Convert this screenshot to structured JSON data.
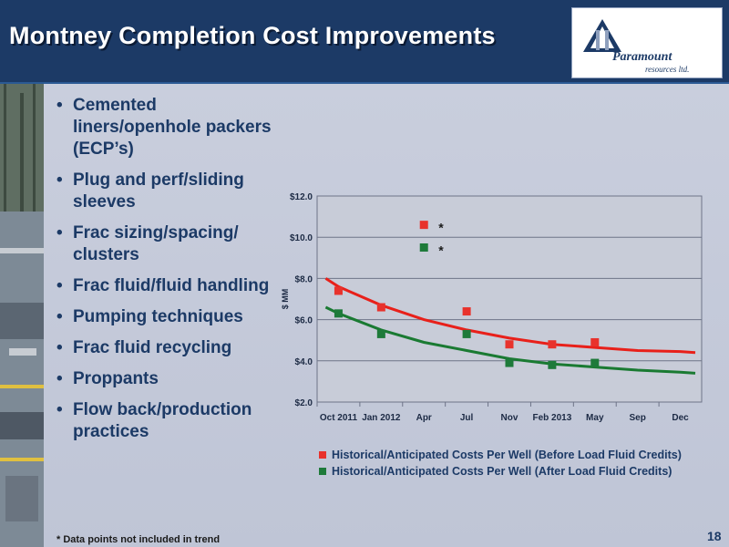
{
  "header": {
    "title": "Montney Completion Cost Improvements"
  },
  "logo": {
    "name": "Paramount",
    "sub": "resources ltd."
  },
  "bullets": [
    "Cemented liners/openhole packers (ECP’s)",
    "Plug and perf/sliding sleeves",
    "Frac sizing/spacing/ clusters",
    "Frac fluid/fluid handling",
    "Pumping techniques",
    "Frac fluid recycling",
    "Proppants",
    "Flow back/production practices"
  ],
  "chart_data": {
    "type": "scatter",
    "ylabel": "$ MM",
    "ylim": [
      2.0,
      12.0
    ],
    "yticks": [
      2.0,
      4.0,
      6.0,
      8.0,
      10.0,
      12.0
    ],
    "ytick_labels": [
      "$2.0",
      "$4.0",
      "$6.0",
      "$8.0",
      "$10.0",
      "$12.0"
    ],
    "categories": [
      "Oct 2011",
      "Jan 2012",
      "Apr",
      "Jul",
      "Nov",
      "Feb 2013",
      "May",
      "Sep",
      "Dec"
    ],
    "grid": true,
    "legend_position": "bottom",
    "series": [
      {
        "name": "Historical/Anticipated Costs Per Well (Before Load Fluid Credits)",
        "color": "#e8322c",
        "points": [
          {
            "x": 0,
            "y": 7.4
          },
          {
            "x": 1,
            "y": 6.6
          },
          {
            "x": 2,
            "y": 10.6,
            "note": "*"
          },
          {
            "x": 3,
            "y": 6.4
          },
          {
            "x": 4,
            "y": 4.8
          },
          {
            "x": 5,
            "y": 4.8
          },
          {
            "x": 6,
            "y": 4.9
          }
        ],
        "trend": [
          {
            "x": -0.3,
            "y": 8.0
          },
          {
            "x": 0,
            "y": 7.6
          },
          {
            "x": 1,
            "y": 6.7
          },
          {
            "x": 2,
            "y": 6.0
          },
          {
            "x": 3,
            "y": 5.5
          },
          {
            "x": 4,
            "y": 5.1
          },
          {
            "x": 5,
            "y": 4.8
          },
          {
            "x": 6,
            "y": 4.65
          },
          {
            "x": 7,
            "y": 4.5
          },
          {
            "x": 8,
            "y": 4.45
          },
          {
            "x": 8.35,
            "y": 4.4
          }
        ]
      },
      {
        "name": "Historical/Anticipated Costs Per Well (After Load Fluid Credits)",
        "color": "#1e7a3a",
        "points": [
          {
            "x": 0,
            "y": 6.3
          },
          {
            "x": 1,
            "y": 5.3
          },
          {
            "x": 2,
            "y": 9.5,
            "note": "*"
          },
          {
            "x": 3,
            "y": 5.3
          },
          {
            "x": 4,
            "y": 3.9
          },
          {
            "x": 5,
            "y": 3.8
          },
          {
            "x": 6,
            "y": 3.9
          }
        ],
        "trend": [
          {
            "x": -0.3,
            "y": 6.6
          },
          {
            "x": 0,
            "y": 6.3
          },
          {
            "x": 1,
            "y": 5.5
          },
          {
            "x": 2,
            "y": 4.9
          },
          {
            "x": 3,
            "y": 4.5
          },
          {
            "x": 4,
            "y": 4.1
          },
          {
            "x": 5,
            "y": 3.85
          },
          {
            "x": 6,
            "y": 3.7
          },
          {
            "x": 7,
            "y": 3.55
          },
          {
            "x": 8,
            "y": 3.45
          },
          {
            "x": 8.35,
            "y": 3.4
          }
        ]
      }
    ]
  },
  "footnote": "* Data points not included in trend",
  "page_number": "18"
}
